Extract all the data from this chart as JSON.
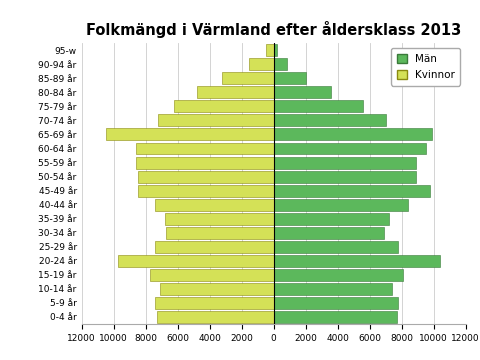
{
  "title": "Folkmängd i Värmland efter åldersklass 2013",
  "age_groups": [
    "0-4 år",
    "5-9 år",
    "10-14 år",
    "15-19 år",
    "20-24 år",
    "25-29 år",
    "30-34 år",
    "35-39 år",
    "40-44 år",
    "45-49 år",
    "50-54 år",
    "55-59 år",
    "60-64 år",
    "65-69 år",
    "70-74 år",
    "75-79 år",
    "80-84 år",
    "85-89 år",
    "90-94 år",
    "95-w"
  ],
  "man": [
    7700,
    7800,
    7400,
    8100,
    10400,
    7800,
    6900,
    7200,
    8400,
    9800,
    8900,
    8900,
    9500,
    9900,
    7000,
    5600,
    3600,
    2000,
    850,
    220
  ],
  "kvinnor": [
    7300,
    7400,
    7100,
    7700,
    9700,
    7400,
    6700,
    6800,
    7400,
    8500,
    8500,
    8600,
    8600,
    10500,
    7200,
    6200,
    4800,
    3200,
    1550,
    480
  ],
  "man_color": "#5cb85c",
  "kvinnor_color": "#d4e157",
  "man_edge": "#3a7a3a",
  "kvinnor_edge": "#8a8a10",
  "xlim": 12000,
  "background_color": "#ffffff",
  "legend_man": "Män",
  "legend_kvinnor": "Kvinnor",
  "title_fontsize": 10.5,
  "tick_fontsize": 6.5
}
